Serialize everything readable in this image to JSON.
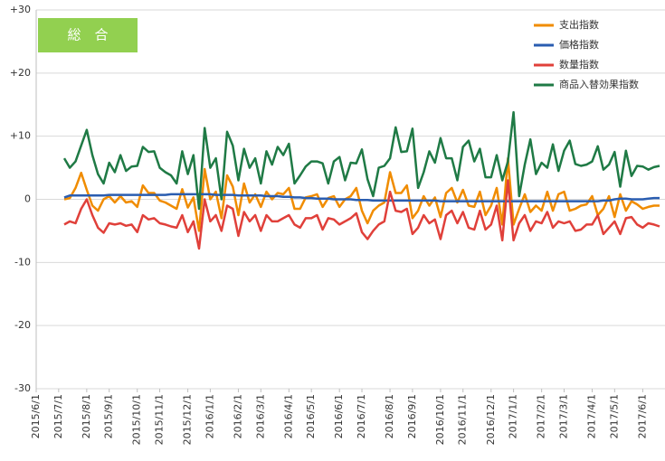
{
  "chart_data": {
    "type": "line",
    "annotation": "総　合",
    "categories": [
      "2015/6/1",
      null,
      null,
      null,
      "2015/7/1",
      null,
      null,
      null,
      null,
      "2015/8/1",
      null,
      null,
      null,
      "2015/9/1",
      null,
      null,
      null,
      null,
      "2015/10/1",
      null,
      null,
      null,
      "2015/11/1",
      null,
      null,
      null,
      null,
      "2015/12/1",
      null,
      null,
      null,
      "2016/1/1",
      null,
      null,
      null,
      null,
      "2016/2/1",
      null,
      null,
      null,
      "2016/3/1",
      null,
      null,
      null,
      null,
      "2016/4/1",
      null,
      null,
      null,
      "2016/5/1",
      null,
      null,
      null,
      null,
      "2016/6/1",
      null,
      null,
      null,
      "2016/7/1",
      null,
      null,
      null,
      null,
      "2016/8/1",
      null,
      null,
      null,
      "2016/9/1",
      null,
      null,
      null,
      null,
      "2016/10/1",
      null,
      null,
      null,
      "2016/11/1",
      null,
      null,
      null,
      null,
      "2016/12/1",
      null,
      null,
      null,
      "2017/1/1",
      null,
      null,
      null,
      null,
      "2017/2/1",
      null,
      null,
      null,
      "2017/3/1",
      null,
      null,
      null,
      null,
      "2017/4/1",
      null,
      null,
      null,
      "2017/5/1",
      null,
      null,
      null,
      null,
      "2017/6/1",
      null,
      null,
      null
    ],
    "series": [
      {
        "name": "支出指数",
        "color": "#f08c00",
        "values": [
          null,
          null,
          null,
          null,
          null,
          0,
          0.2,
          1.8,
          4.2,
          1.5,
          -1,
          -1.8,
          0,
          0.5,
          -0.5,
          0.5,
          -0.5,
          -0.3,
          -1.2,
          2.2,
          1,
          1,
          -0.2,
          -0.5,
          -1,
          -1.5,
          1.6,
          -1.3,
          0.3,
          -5,
          4.8,
          0,
          1.2,
          -3,
          3.8,
          2,
          -2.5,
          2.5,
          -0.5,
          0.8,
          -1.2,
          1.2,
          0,
          1,
          0.8,
          1.8,
          -1.5,
          -1.5,
          0.3,
          0.5,
          0.8,
          -1.2,
          0.2,
          0.5,
          -1.2,
          0,
          0.5,
          1.8,
          -1.8,
          -3.8,
          -1.8,
          -1,
          -0.5,
          4.3,
          1,
          1,
          2.2,
          -3,
          -1.8,
          0.5,
          -1,
          0.3,
          -2.8,
          1,
          1.8,
          -0.5,
          1.5,
          -1,
          -1.2,
          1.2,
          -2.5,
          -1,
          1.8,
          -4,
          6.5,
          -4,
          -1.5,
          0.8,
          -2,
          -1,
          -1.8,
          1.2,
          -1.8,
          0.8,
          1.2,
          -1.8,
          -1.5,
          -1,
          -0.8,
          0.5,
          -2.5,
          -1.5,
          0.5,
          -2.8,
          0.8,
          -1.8,
          -0.3,
          -0.8,
          -1.5,
          -1.2,
          -1,
          -1
        ]
      },
      {
        "name": "価格指数",
        "color": "#2a5db0",
        "values": [
          null,
          null,
          null,
          null,
          null,
          0.3,
          0.6,
          0.6,
          0.6,
          0.6,
          0.6,
          0.6,
          0.6,
          0.7,
          0.7,
          0.7,
          0.7,
          0.7,
          0.7,
          0.7,
          0.7,
          0.7,
          0.7,
          0.7,
          0.8,
          0.8,
          0.8,
          0.8,
          0.8,
          0.8,
          0.8,
          0.8,
          0.7,
          0.7,
          0.7,
          0.7,
          0.6,
          0.6,
          0.6,
          0.6,
          0.6,
          0.5,
          0.5,
          0.5,
          0.4,
          0.4,
          0.3,
          0.3,
          0.2,
          0.2,
          0.1,
          0.1,
          0.1,
          0,
          0,
          0,
          0,
          -0.1,
          -0.1,
          -0.1,
          -0.2,
          -0.2,
          -0.2,
          -0.2,
          -0.2,
          -0.2,
          -0.2,
          -0.2,
          -0.2,
          -0.2,
          -0.2,
          -0.2,
          -0.3,
          -0.3,
          -0.3,
          -0.3,
          -0.3,
          -0.3,
          -0.3,
          -0.3,
          -0.3,
          -0.3,
          -0.3,
          -0.3,
          -0.3,
          -0.3,
          -0.3,
          -0.3,
          -0.3,
          -0.3,
          -0.3,
          -0.3,
          -0.3,
          -0.3,
          -0.3,
          -0.3,
          -0.3,
          -0.3,
          -0.3,
          -0.3,
          -0.3,
          -0.2,
          -0.2,
          0,
          0.1,
          0.1,
          0,
          0,
          0,
          0.1,
          0.2,
          0.2
        ]
      },
      {
        "name": "数量指数",
        "color": "#e0403a",
        "values": [
          null,
          null,
          null,
          null,
          null,
          -4,
          -3.5,
          -3.8,
          -1.5,
          0,
          -2.5,
          -4.5,
          -5.3,
          -3.8,
          -4,
          -3.8,
          -4.2,
          -4,
          -5.2,
          -2.5,
          -3.2,
          -3,
          -3.8,
          -4,
          -4.3,
          -4.5,
          -2.5,
          -5.2,
          -3.5,
          -7.8,
          0,
          -3.5,
          -2.5,
          -5,
          -1,
          -1.5,
          -5.8,
          -2,
          -3.5,
          -2.5,
          -5,
          -2.5,
          -3.5,
          -3.5,
          -3,
          -2.5,
          -4,
          -4.5,
          -3,
          -3,
          -2.5,
          -4.8,
          -3,
          -3.2,
          -4,
          -3.5,
          -3,
          -2.2,
          -5.2,
          -6.3,
          -5,
          -4,
          -3.5,
          1.2,
          -1.8,
          -2,
          -1.5,
          -5.5,
          -4.5,
          -2.5,
          -3.8,
          -3.2,
          -6.3,
          -2.5,
          -1.8,
          -3.8,
          -2,
          -4.5,
          -4.8,
          -1.8,
          -4.8,
          -4,
          -1,
          -6.5,
          3,
          -6.5,
          -3.8,
          -2.5,
          -5,
          -3.5,
          -3.8,
          -2,
          -4.5,
          -3.5,
          -3.8,
          -3.5,
          -5,
          -4.8,
          -4,
          -4,
          -2.5,
          -5.5,
          -4.5,
          -3.5,
          -5.5,
          -3,
          -2.8,
          -4,
          -4.5,
          -3.8,
          -4,
          -4.3
        ]
      },
      {
        "name": "商品入替効果指数",
        "color": "#1f7a45",
        "values": [
          null,
          null,
          null,
          null,
          null,
          6.5,
          5,
          6,
          8.5,
          11,
          7,
          4,
          2.5,
          5.8,
          4.3,
          7,
          4.5,
          5.2,
          5.3,
          8.3,
          7.5,
          7.6,
          5,
          4.3,
          3.8,
          2.5,
          7.6,
          4,
          7,
          -1.5,
          11.3,
          5,
          6.5,
          0,
          10.7,
          8.5,
          3,
          8,
          5,
          6.5,
          2.5,
          7.6,
          5.5,
          8.3,
          7,
          8.8,
          2.5,
          3.8,
          5.2,
          6,
          6,
          5.7,
          2.5,
          6,
          6.7,
          3,
          5.8,
          5.7,
          7.9,
          3.2,
          0.5,
          5,
          5.3,
          6.5,
          11.4,
          7.5,
          7.6,
          11.2,
          1.8,
          4.3,
          7.6,
          5.8,
          9.7,
          6.5,
          6.5,
          3,
          8.3,
          9.3,
          6,
          8,
          3.5,
          3.5,
          7,
          3,
          6,
          13.8,
          0.5,
          5.5,
          9.5,
          4,
          5.8,
          5,
          8.7,
          4.5,
          7.7,
          9.3,
          5.6,
          5.3,
          5.5,
          6,
          8.4,
          4.7,
          5.5,
          7.5,
          2,
          7.7,
          3.7,
          5.3,
          5.2,
          4.7,
          5.1,
          5.3
        ]
      }
    ],
    "ylim": [
      -30,
      30
    ],
    "yticks": [
      {
        "value": -30,
        "label": "-30"
      },
      {
        "value": -20,
        "label": "-20"
      },
      {
        "value": -10,
        "label": "-10"
      },
      0,
      {
        "value": 10,
        "label": "+10"
      },
      {
        "value": 20,
        "label": "+20"
      },
      {
        "value": 30,
        "label": "+30"
      }
    ],
    "grid": true,
    "legend": "upper right"
  }
}
